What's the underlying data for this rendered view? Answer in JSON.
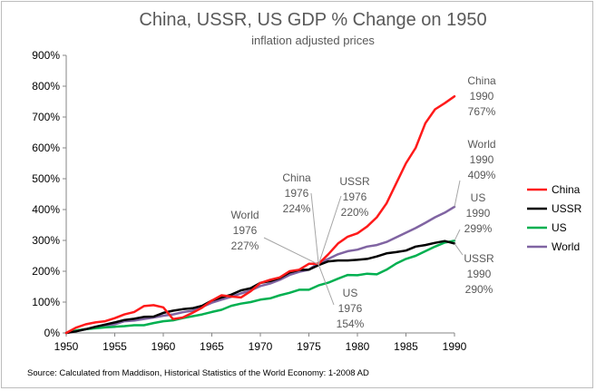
{
  "chart_data": {
    "type": "line",
    "title": "China, USSR, US GDP  % Change on 1950",
    "subtitle": "inflation adjusted prices",
    "source": "Source: Calculated from Maddison, Historical Statistics of the World Economy:  1-2008 AD",
    "xlim": [
      1950,
      1990
    ],
    "ylim": [
      0,
      900
    ],
    "x_ticks": [
      "1950",
      "1955",
      "1960",
      "1965",
      "1970",
      "1975",
      "1980",
      "1985",
      "1990"
    ],
    "y_ticks": [
      "0%",
      "100%",
      "200%",
      "300%",
      "400%",
      "500%",
      "600%",
      "700%",
      "800%",
      "900%"
    ],
    "x": [
      1950,
      1951,
      1952,
      1953,
      1954,
      1955,
      1956,
      1957,
      1958,
      1959,
      1960,
      1961,
      1962,
      1963,
      1964,
      1965,
      1966,
      1967,
      1968,
      1969,
      1970,
      1971,
      1972,
      1973,
      1974,
      1975,
      1976,
      1977,
      1978,
      1979,
      1980,
      1981,
      1982,
      1983,
      1984,
      1985,
      1986,
      1987,
      1988,
      1989,
      1990
    ],
    "series": [
      {
        "name": "China",
        "color": "#ff1a1a",
        "values": [
          0,
          17,
          28,
          34,
          38,
          48,
          60,
          68,
          87,
          90,
          83,
          45,
          50,
          65,
          82,
          105,
          122,
          118,
          115,
          135,
          162,
          172,
          180,
          200,
          205,
          224,
          224,
          255,
          290,
          312,
          323,
          345,
          375,
          420,
          485,
          550,
          600,
          680,
          725,
          745,
          767
        ]
      },
      {
        "name": "USSR",
        "color": "#000000",
        "values": [
          0,
          5,
          12,
          20,
          27,
          34,
          42,
          46,
          52,
          53,
          65,
          72,
          77,
          80,
          88,
          105,
          115,
          124,
          138,
          145,
          162,
          168,
          178,
          196,
          204,
          205,
          220,
          232,
          235,
          235,
          237,
          240,
          248,
          258,
          262,
          267,
          280,
          285,
          292,
          298,
          290
        ]
      },
      {
        "name": "US",
        "color": "#00b050",
        "values": [
          0,
          8,
          12,
          15,
          18,
          20,
          22,
          25,
          25,
          32,
          38,
          41,
          48,
          54,
          60,
          68,
          75,
          88,
          95,
          100,
          108,
          112,
          122,
          130,
          140,
          140,
          154,
          163,
          176,
          188,
          187,
          192,
          190,
          205,
          225,
          240,
          250,
          265,
          280,
          293,
          299
        ]
      },
      {
        "name": "World",
        "color": "#8064a2",
        "values": [
          0,
          6,
          12,
          17,
          24,
          28,
          38,
          40,
          45,
          50,
          56,
          60,
          67,
          72,
          84,
          98,
          108,
          117,
          128,
          138,
          152,
          160,
          172,
          188,
          198,
          205,
          227,
          240,
          255,
          265,
          270,
          280,
          285,
          295,
          310,
          325,
          340,
          357,
          375,
          390,
          409
        ]
      }
    ],
    "legend": [
      "China",
      "USSR",
      "US",
      "World"
    ],
    "legend_position": "right",
    "annotations": [
      {
        "label": "China",
        "line2": "1976",
        "line3": "224%",
        "year": 1976,
        "value": 224
      },
      {
        "label": "USSR",
        "line2": "1976",
        "line3": "220%",
        "year": 1976,
        "value": 220
      },
      {
        "label": "World",
        "line2": "1976",
        "line3": "227%",
        "year": 1976,
        "value": 227
      },
      {
        "label": "US",
        "line2": "1976",
        "line3": "154%",
        "year": 1976,
        "value": 154
      },
      {
        "label": "China",
        "line2": "1990",
        "line3": "767%",
        "year": 1990,
        "value": 767
      },
      {
        "label": "World",
        "line2": "1990",
        "line3": "409%",
        "year": 1990,
        "value": 409
      },
      {
        "label": "US",
        "line2": "1990",
        "line3": "299%",
        "year": 1990,
        "value": 299
      },
      {
        "label": "USSR",
        "line2": "1990",
        "line3": "290%",
        "year": 1990,
        "value": 290
      }
    ]
  }
}
